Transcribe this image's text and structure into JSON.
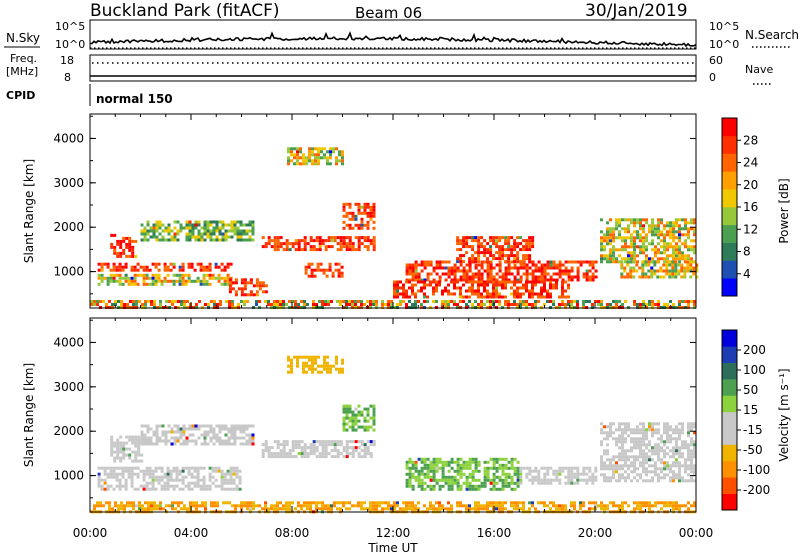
{
  "header": {
    "site": "Buckland Park (fitACF)",
    "beam": "Beam 06",
    "date": "30/Jan/2019"
  },
  "top_panels": {
    "nsky_label": "N.Sky",
    "nsky_ticks": [
      "10^5",
      "10^0"
    ],
    "nsearch_label": "N.Search",
    "freq_label": "Freq.",
    "freq_units": "[MHz]",
    "freq_ticks": [
      "18",
      "8"
    ],
    "nave_label": "Nave",
    "nave_ticks": [
      "60",
      "0"
    ],
    "cpid_label": "CPID",
    "cpid_value": "normal 150"
  },
  "x_axis": {
    "label": "Time UT",
    "ticks": [
      "00:00",
      "04:00",
      "08:00",
      "12:00",
      "16:00",
      "20:00",
      "00:00"
    ]
  },
  "colors": {
    "power": [
      "#0000ff",
      "#1e50b4",
      "#2e7b5a",
      "#4aa050",
      "#96c83c",
      "#f0c800",
      "#ffa000",
      "#ff6400",
      "#ff3000",
      "#ff0000"
    ],
    "velocity": [
      "#ff0000",
      "#ff5000",
      "#ff9000",
      "#f0b400",
      "#c8c8c8",
      "#c8c8c8",
      "#8cd23c",
      "#4ca050",
      "#2c6e5a",
      "#1e3cb4",
      "#0000dc"
    ]
  },
  "chart_data": [
    {
      "type": "heatmap",
      "name": "power-panel",
      "ylabel": "Slant Range [km]",
      "ylim": [
        180,
        4550
      ],
      "yticks": [
        "1000",
        "2000",
        "3000",
        "4000"
      ],
      "xlim_hours": [
        0,
        24
      ],
      "colorbar_label": "Power [dB]",
      "colorbar_ticks": [
        "28",
        "24",
        "20",
        "16",
        "12",
        "8",
        "4"
      ],
      "regions": [
        {
          "t": [
            0.0,
            24.0
          ],
          "r": [
            200,
            360
          ],
          "level": "mixed-low"
        },
        {
          "t": [
            0.3,
            5.6
          ],
          "r": [
            1000,
            1200
          ],
          "level": "strong"
        },
        {
          "t": [
            0.3,
            5.6
          ],
          "r": [
            700,
            950
          ],
          "level": "moderate"
        },
        {
          "t": [
            0.8,
            1.8
          ],
          "r": [
            1350,
            1850
          ],
          "level": "strong"
        },
        {
          "t": [
            2.0,
            6.5
          ],
          "r": [
            1700,
            2150
          ],
          "level": "weak"
        },
        {
          "t": [
            5.5,
            7.0
          ],
          "r": [
            480,
            850
          ],
          "level": "strong"
        },
        {
          "t": [
            6.8,
            11.3
          ],
          "r": [
            1500,
            1800
          ],
          "level": "strong"
        },
        {
          "t": [
            7.8,
            10.0
          ],
          "r": [
            3450,
            3800
          ],
          "level": "moderate"
        },
        {
          "t": [
            10.0,
            11.3
          ],
          "r": [
            2000,
            2550
          ],
          "level": "strong"
        },
        {
          "t": [
            8.5,
            10.0
          ],
          "r": [
            880,
            1200
          ],
          "level": "strong"
        },
        {
          "t": [
            12.5,
            20.0
          ],
          "r": [
            780,
            1250
          ],
          "level": "strong"
        },
        {
          "t": [
            14.5,
            17.5
          ],
          "r": [
            1250,
            1800
          ],
          "level": "strong"
        },
        {
          "t": [
            12.0,
            19.0
          ],
          "r": [
            400,
            800
          ],
          "level": "strong"
        },
        {
          "t": [
            20.2,
            24.0
          ],
          "r": [
            1250,
            2200
          ],
          "level": "moderate"
        },
        {
          "t": [
            21.0,
            24.0
          ],
          "r": [
            900,
            1250
          ],
          "level": "moderate"
        }
      ]
    },
    {
      "type": "heatmap",
      "name": "velocity-panel",
      "ylabel": "Slant Range [km]",
      "ylim": [
        180,
        4550
      ],
      "yticks": [
        "1000",
        "2000",
        "3000",
        "4000"
      ],
      "xlim_hours": [
        0,
        24
      ],
      "colorbar_label": "Velocity [m s⁻¹]",
      "colorbar_ticks": [
        "200",
        "100",
        "50",
        "15",
        "-15",
        "-50",
        "-100",
        "-200"
      ],
      "regions": [
        {
          "t": [
            0.0,
            24.0
          ],
          "r": [
            200,
            420
          ],
          "level": "neg-mid"
        },
        {
          "t": [
            0.3,
            6.0
          ],
          "r": [
            700,
            1200
          ],
          "level": "zero"
        },
        {
          "t": [
            0.8,
            2.0
          ],
          "r": [
            1350,
            1900
          ],
          "level": "zero"
        },
        {
          "t": [
            2.0,
            6.5
          ],
          "r": [
            1700,
            2150
          ],
          "level": "zero"
        },
        {
          "t": [
            6.8,
            11.3
          ],
          "r": [
            1450,
            1800
          ],
          "level": "zero"
        },
        {
          "t": [
            7.8,
            10.0
          ],
          "r": [
            3300,
            3700
          ],
          "level": "neg-low"
        },
        {
          "t": [
            10.0,
            11.3
          ],
          "r": [
            2000,
            2600
          ],
          "level": "pos-low"
        },
        {
          "t": [
            12.5,
            17.0
          ],
          "r": [
            700,
            1400
          ],
          "level": "pos-low"
        },
        {
          "t": [
            17.0,
            20.0
          ],
          "r": [
            800,
            1200
          ],
          "level": "zero"
        },
        {
          "t": [
            20.2,
            24.0
          ],
          "r": [
            900,
            2200
          ],
          "level": "zero"
        }
      ]
    }
  ]
}
